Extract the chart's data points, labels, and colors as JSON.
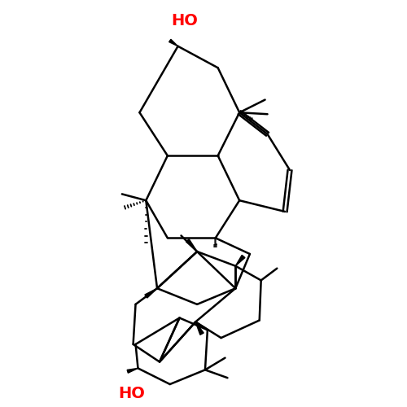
{
  "background_color": "#ffffff",
  "bond_color": "#000000",
  "ho_color": "#ff0000",
  "line_width": 1.8,
  "figsize": [
    5.0,
    5.0
  ],
  "dpi": 100
}
